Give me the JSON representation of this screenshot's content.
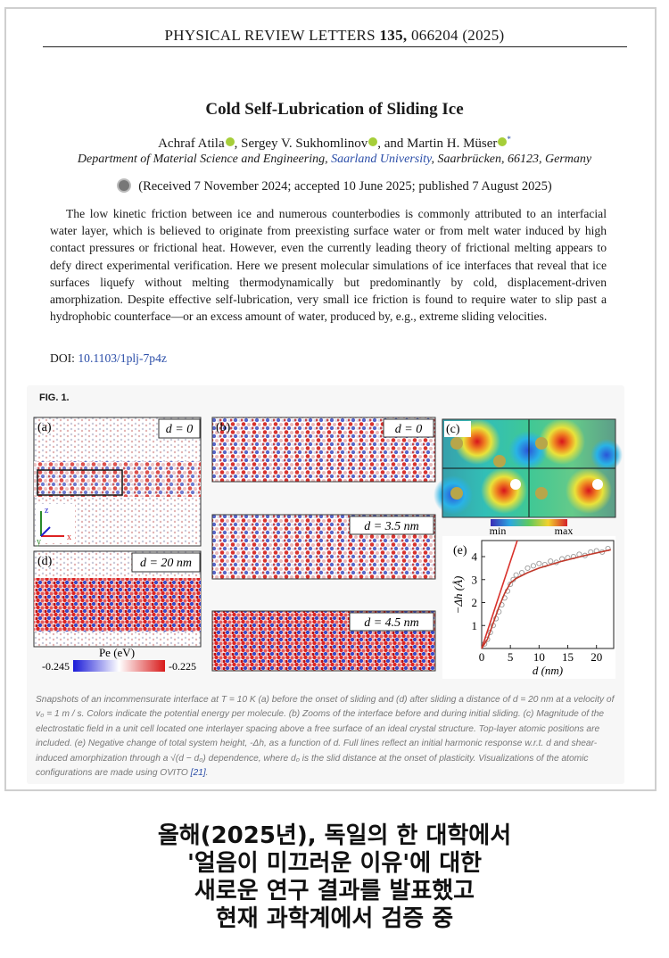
{
  "header": {
    "journal": "PHYSICAL REVIEW LETTERS",
    "volume": "135,",
    "article": "066204 (2025)"
  },
  "title": "Cold Self-Lubrication of Sliding Ice",
  "authors": [
    "Achraf Atila",
    ", Sergey V. Sukhomlinov",
    ", and Martin H. Müser",
    "*"
  ],
  "affiliation": {
    "before": "Department of Material Science and Engineering, ",
    "link": "Saarland University",
    "after": ", Saarbrücken, 66123, Germany"
  },
  "history": "(Received 7 November 2024; accepted 10 June 2025; published 7 August 2025)",
  "abstract": "The low kinetic friction between ice and numerous counterbodies is commonly attributed to an interfacial water layer, which is believed to originate from preexisting surface water or from melt water induced by high contact pressures or frictional heat. However, even the currently leading theory of frictional melting appears to defy direct experimental verification. Here we present molecular simulations of ice interfaces that reveal that ice surfaces liquefy without melting thermodynamically but predominantly by cold, displacement-driven amorphization. Despite effective self-lubrication, very small ice friction is found to require water to slip past a hydrophobic counterface—or an excess amount of water, produced by, e.g., extreme sliding velocities.",
  "doi": {
    "label": "DOI:",
    "link": "10.1103/1plj-7p4z"
  },
  "figure": {
    "label": "FIG. 1.",
    "panel_a": {
      "label": "(a)",
      "d": "d = 0",
      "axes": [
        "z",
        "y",
        "x"
      ]
    },
    "panel_b": {
      "label": "(b)",
      "d": [
        "d = 0",
        "d = 3.5 nm",
        "d = 4.5 nm"
      ]
    },
    "panel_c": {
      "label": "(c)",
      "min": "min",
      "max": "max"
    },
    "panel_d": {
      "label": "(d)",
      "d": "d = 20 nm",
      "colorbar_title": "Pe (eV)",
      "colorbar_min": "-0.245",
      "colorbar_max": "-0.225"
    },
    "panel_e": {
      "label": "(e)",
      "xlabel": "d (nm)",
      "ylabel": "−Δh (Å)",
      "xlim": [
        0,
        23
      ],
      "ylim": [
        0,
        4.7
      ],
      "xticks": [
        0,
        5,
        10,
        15,
        20
      ],
      "yticks": [
        1,
        2,
        3,
        4
      ],
      "points": {
        "color": "#9a9a9a",
        "x": [
          0.5,
          1,
          1.5,
          2,
          2.5,
          3,
          3.5,
          4,
          4.5,
          5,
          5.5,
          6,
          7,
          8,
          9,
          10,
          11,
          12,
          13,
          14,
          15,
          16,
          17,
          18,
          19,
          20,
          21,
          22
        ],
        "y": [
          0.2,
          0.4,
          0.7,
          1.0,
          1.3,
          1.6,
          1.9,
          2.2,
          2.5,
          2.8,
          3.0,
          3.2,
          3.3,
          3.5,
          3.6,
          3.7,
          3.65,
          3.8,
          3.75,
          3.9,
          3.95,
          4.0,
          4.1,
          4.05,
          4.2,
          4.25,
          4.2,
          4.35
        ]
      },
      "fit": {
        "color": "#c0392b",
        "x": [
          0,
          1,
          2,
          3,
          4,
          5,
          6,
          8,
          10,
          14,
          18,
          22.5
        ],
        "y": [
          0,
          0.4,
          1.1,
          1.8,
          2.4,
          2.85,
          3.05,
          3.3,
          3.5,
          3.8,
          4.05,
          4.3
        ]
      },
      "harmonic": {
        "color": "#d9312b",
        "x": [
          0,
          6.2
        ],
        "y": [
          0,
          4.7
        ]
      }
    },
    "caption": [
      "Snapshots of an incommensurate interface at T = 10 K (a) before the onset of sliding and (d) after sliding a distance of d = 20 nm at a velocity of v₀ = 1 m / s. Colors indicate the potential energy per molecule. (b) Zooms of the interface before and during initial sliding. (c) Magnitude of the electrostatic field in a unit cell located one interlayer spacing above a free surface of an ideal crystal structure. Top-layer atomic positions are included. (e) Negative change of total system height, -Δh, as a function of d. Full lines reflect an initial harmonic response w.r.t. d and shear-induced amorphization through a √(d − d₀) dependence, where d₀ is the slid distance at the onset of plasticity. Visualizations of the atomic configurations are made using OVITO ",
      "[21]",
      "."
    ]
  },
  "overlay_text": [
    "올해(2025년), 독일의 한 대학에서",
    "'얼음이 미끄러운 이유'에 대한",
    "새로운 연구 결과를 발표했고",
    "현재 과학계에서 검증 중"
  ]
}
